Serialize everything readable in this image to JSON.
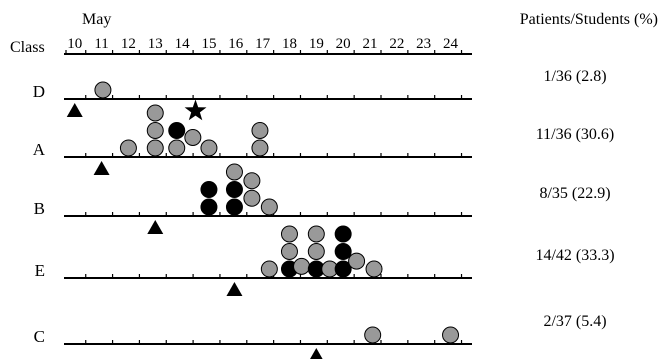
{
  "chart_data": {
    "type": "scatter",
    "month_label": "May",
    "class_header": "Class",
    "rate_header": "Patients/Students (%)",
    "x_ticks": [
      10,
      11,
      12,
      13,
      14,
      15,
      16,
      17,
      18,
      19,
      20,
      21,
      22,
      23,
      24
    ],
    "xlim": [
      9.6,
      24.8
    ],
    "legend": [],
    "colors": {
      "gray": "#999999",
      "black": "#000000"
    },
    "rows": [
      {
        "class": "D",
        "rate": "1/36 (2.8)",
        "triangle": 10.0,
        "points": [
          {
            "x": 11.05,
            "level": 0,
            "color": "gray"
          }
        ]
      },
      {
        "class": "A",
        "rate": "11/36 (30.6)",
        "triangle": 11.0,
        "star": {
          "x": 14.5,
          "level": 2
        },
        "points": [
          {
            "x": 12.0,
            "level": 0,
            "color": "gray"
          },
          {
            "x": 13.0,
            "level": 0,
            "color": "gray"
          },
          {
            "x": 13.0,
            "level": 1,
            "color": "gray"
          },
          {
            "x": 13.0,
            "level": 2,
            "color": "gray"
          },
          {
            "x": 13.8,
            "level": 0,
            "color": "gray"
          },
          {
            "x": 13.8,
            "level": 1,
            "color": "black"
          },
          {
            "x": 14.4,
            "level": 0.6,
            "color": "gray"
          },
          {
            "x": 15.0,
            "level": 0,
            "color": "gray"
          },
          {
            "x": 16.9,
            "level": 0,
            "color": "gray"
          },
          {
            "x": 16.9,
            "level": 1,
            "color": "gray"
          }
        ]
      },
      {
        "class": "B",
        "rate": "8/35 (22.9)",
        "triangle": 13.0,
        "points": [
          {
            "x": 15.0,
            "level": 0,
            "color": "black"
          },
          {
            "x": 15.0,
            "level": 1,
            "color": "black"
          },
          {
            "x": 15.95,
            "level": 0,
            "color": "black"
          },
          {
            "x": 15.95,
            "level": 1,
            "color": "black"
          },
          {
            "x": 15.95,
            "level": 2,
            "color": "gray"
          },
          {
            "x": 16.6,
            "level": 0.5,
            "color": "gray"
          },
          {
            "x": 16.6,
            "level": 1.5,
            "color": "gray"
          },
          {
            "x": 17.25,
            "level": 0,
            "color": "gray"
          }
        ]
      },
      {
        "class": "E",
        "rate": "14/42 (33.3)",
        "triangle": 15.95,
        "points": [
          {
            "x": 17.25,
            "level": 0,
            "color": "gray"
          },
          {
            "x": 18.0,
            "level": 0,
            "color": "black"
          },
          {
            "x": 18.0,
            "level": 1,
            "color": "gray"
          },
          {
            "x": 18.0,
            "level": 2,
            "color": "gray"
          },
          {
            "x": 18.45,
            "level": 0.15,
            "color": "gray"
          },
          {
            "x": 19.0,
            "level": 0,
            "color": "black"
          },
          {
            "x": 19.0,
            "level": 1,
            "color": "gray"
          },
          {
            "x": 19.0,
            "level": 2,
            "color": "gray"
          },
          {
            "x": 19.5,
            "level": 0,
            "color": "gray"
          },
          {
            "x": 20.0,
            "level": 0,
            "color": "black"
          },
          {
            "x": 20.0,
            "level": 1,
            "color": "black"
          },
          {
            "x": 20.0,
            "level": 2,
            "color": "black"
          },
          {
            "x": 20.5,
            "level": 0.45,
            "color": "gray"
          },
          {
            "x": 21.15,
            "level": 0,
            "color": "gray"
          }
        ]
      },
      {
        "class": "C",
        "rate": "2/37 (5.4)",
        "triangle": 19.0,
        "points": [
          {
            "x": 21.1,
            "level": 0,
            "color": "gray"
          },
          {
            "x": 24.0,
            "level": 0,
            "color": "gray"
          }
        ]
      }
    ]
  }
}
